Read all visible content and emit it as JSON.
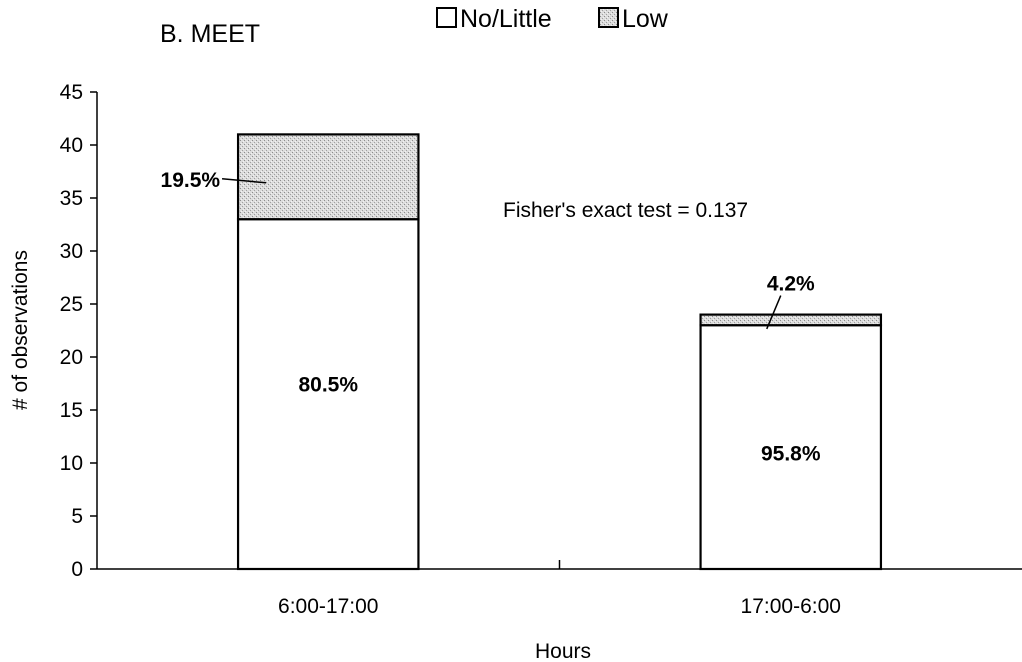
{
  "chart_data": {
    "type": "bar",
    "stacked": true,
    "title": "B. MEET",
    "xlabel": "Hours",
    "ylabel": "# of observations",
    "categories": [
      "6:00-17:00",
      "17:00-6:00"
    ],
    "series": [
      {
        "name": "No/Little",
        "values": [
          33,
          23
        ],
        "labels": [
          "80.5%",
          "95.8%"
        ],
        "color": "#ffffff"
      },
      {
        "name": "Low",
        "values": [
          8,
          1
        ],
        "labels": [
          "19.5%",
          "4.2%"
        ],
        "color": "#d4d4d4"
      }
    ],
    "ylim": [
      0,
      45
    ],
    "yticks": [
      0,
      5,
      10,
      15,
      20,
      25,
      30,
      35,
      40,
      45
    ],
    "legend": "top-center",
    "grid": false,
    "annotations": [
      {
        "text": "Fisher's exact test = 0.137"
      }
    ]
  }
}
